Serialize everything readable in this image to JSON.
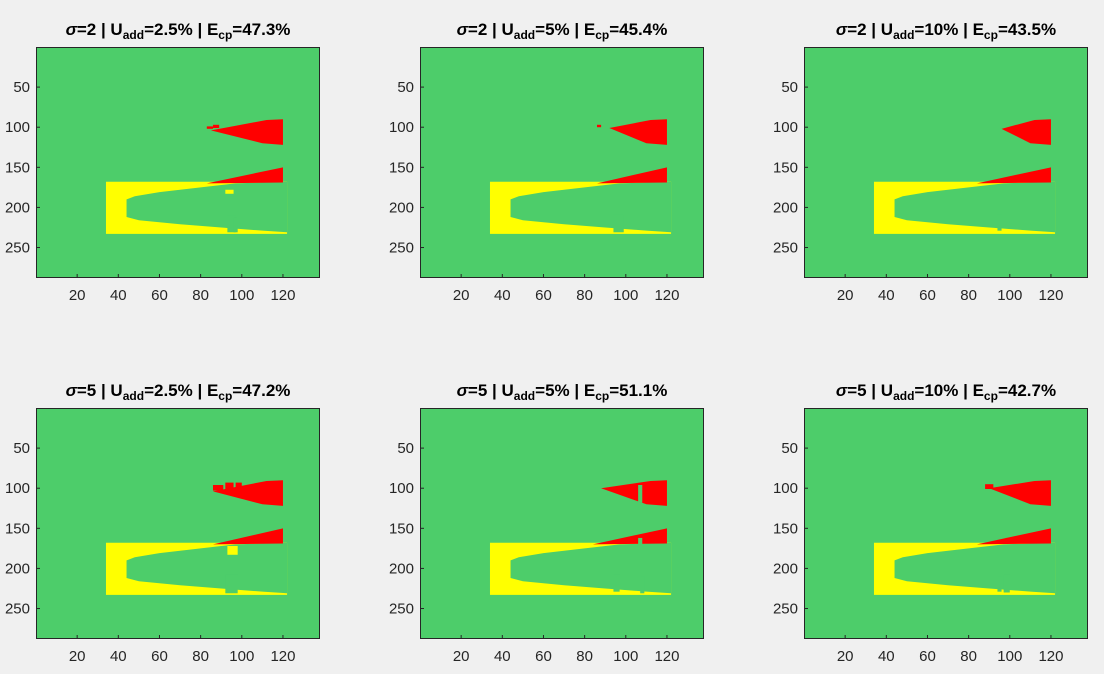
{
  "colors": {
    "background": "#f0f0f0",
    "green": "#4dcd6a",
    "red": "#ff0000",
    "yellow": "#ffff00",
    "axis": "#262626"
  },
  "panels": [
    {
      "sigma": "2",
      "uadd": "2.5%",
      "ecp": "47.3%"
    },
    {
      "sigma": "2",
      "uadd": "5%",
      "ecp": "45.4%"
    },
    {
      "sigma": "2",
      "uadd": "10%",
      "ecp": "43.5%"
    },
    {
      "sigma": "5",
      "uadd": "2.5%",
      "ecp": "47.2%"
    },
    {
      "sigma": "5",
      "uadd": "5%",
      "ecp": "51.1%"
    },
    {
      "sigma": "5",
      "uadd": "10%",
      "ecp": "42.7%"
    }
  ],
  "chart_data": {
    "type": "heatmap",
    "layout": "2x3 grid of image panels",
    "title_template": "σ={sigma} | U_add={uadd} | E_cp={ecp}",
    "xlim": [
      0,
      138
    ],
    "ylim": [
      0,
      288
    ],
    "y_reversed": true,
    "xticks": [
      20,
      40,
      60,
      80,
      100,
      120
    ],
    "yticks": [
      50,
      100,
      150,
      200,
      250
    ],
    "grid": false,
    "legend": "none",
    "classes": [
      {
        "color": "#4dcd6a"
      },
      {
        "color": "#ff0000"
      },
      {
        "color": "#ffff00"
      }
    ],
    "regions": {
      "yellow_block": {
        "x": [
          34,
          122
        ],
        "y": [
          168,
          233
        ]
      },
      "green_wedge": {
        "x_tip": 44,
        "y_tip": 201,
        "upper_edge": [
          [
            44,
            190
          ],
          [
            48,
            186
          ],
          [
            60,
            181
          ],
          [
            80,
            175
          ],
          [
            97,
            170
          ],
          [
            122,
            168
          ]
        ],
        "lower_edge": [
          [
            44,
            212
          ],
          [
            50,
            216
          ],
          [
            70,
            221
          ],
          [
            90,
            225
          ],
          [
            110,
            229
          ],
          [
            122,
            231
          ]
        ]
      },
      "red_upper_wedge": {
        "x_right": 120,
        "y": [
          90,
          122
        ]
      },
      "red_lower_wedge": {
        "x_right": 120,
        "y": [
          150,
          170
        ]
      }
    }
  }
}
